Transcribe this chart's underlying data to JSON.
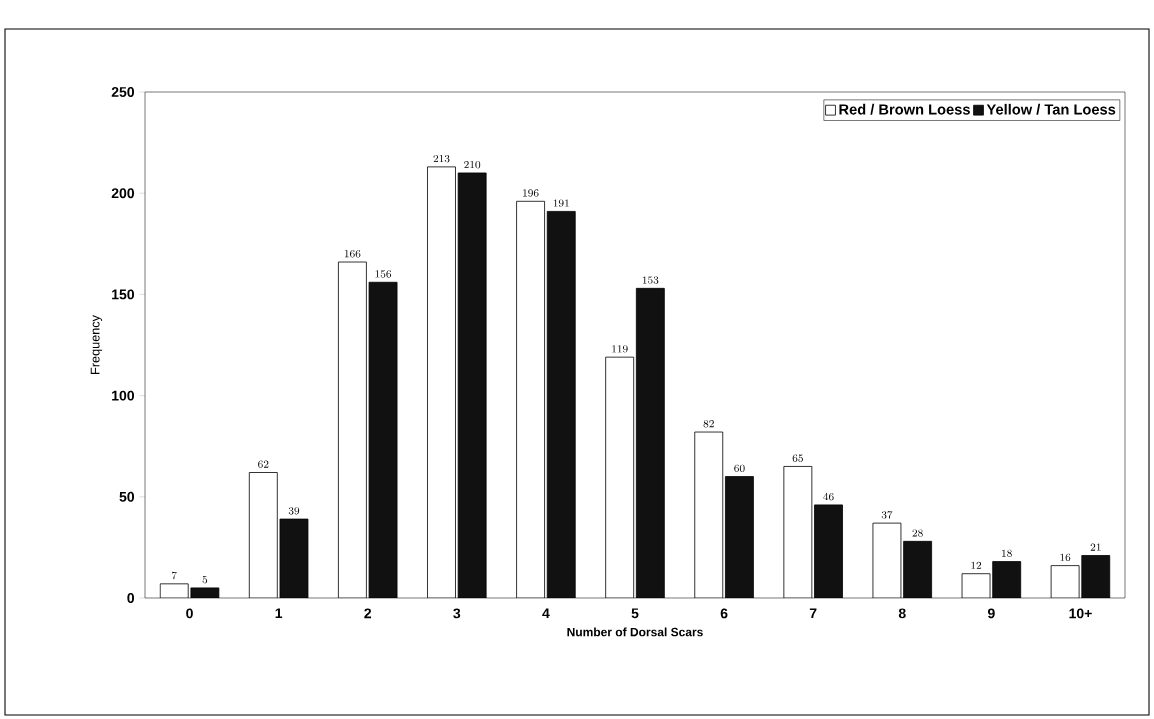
{
  "chart_data": {
    "type": "bar",
    "xlabel": "Number of Dorsal Scars",
    "ylabel": "Frequency",
    "categories": [
      "0",
      "1",
      "2",
      "3",
      "4",
      "5",
      "6",
      "7",
      "8",
      "9",
      "10+"
    ],
    "series": [
      {
        "name": "Red / Brown Loess",
        "color": "#ffffff",
        "values": [
          7,
          62,
          166,
          213,
          196,
          119,
          82,
          65,
          37,
          12,
          16
        ]
      },
      {
        "name": "Yellow / Tan Loess",
        "color": "#111111",
        "values": [
          5,
          39,
          156,
          210,
          191,
          153,
          60,
          46,
          28,
          18,
          21
        ]
      }
    ],
    "ylim": [
      0,
      250
    ],
    "yticks": [
      0,
      50,
      100,
      150,
      200,
      250
    ],
    "data_labels": true,
    "legend": "top right",
    "grid": false
  }
}
